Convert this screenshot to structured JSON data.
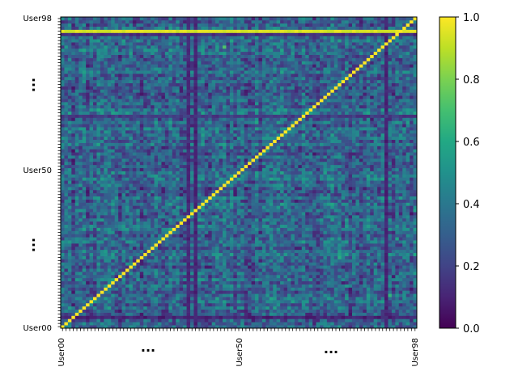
{
  "chart_data": {
    "type": "heatmap",
    "title": "",
    "xlabel": "",
    "ylabel": "",
    "n": 99,
    "row_label_prefix": "User",
    "x_tick_labels": [
      "User00",
      "User50",
      "User98"
    ],
    "y_tick_labels": [
      "User00",
      "User50",
      "User98"
    ],
    "x_ellipsis_labels": [
      "...",
      "..."
    ],
    "y_ellipsis_labels": [
      "...",
      "..."
    ],
    "colorbar": {
      "colormap": "viridis",
      "range": [
        0.0,
        1.0
      ],
      "tick_labels": [
        "0.0",
        "0.2",
        "0.4",
        "0.6",
        "0.8",
        "1.0"
      ]
    },
    "diagonal_value": 1.0,
    "typical_offdiagonal_range": [
      0.15,
      0.5
    ],
    "high_similarity_rows": [
      {
        "index": 94,
        "value": 0.97
      }
    ],
    "low_similarity_rows": [
      {
        "index": 3,
        "value": 0.05
      },
      {
        "index": 67,
        "value": 0.12
      },
      {
        "index": 93,
        "value": 0.08
      }
    ],
    "low_similarity_columns": [
      {
        "index": 35,
        "value": 0.08
      },
      {
        "index": 37,
        "value": 0.06
      },
      {
        "index": 90,
        "value": 0.06
      }
    ],
    "noted_bright_cells": [
      {
        "row": 89,
        "col": 45,
        "value": 0.72
      },
      {
        "row": 10,
        "col": 91,
        "value": 0.65
      },
      {
        "row": 22,
        "col": 77,
        "value": 0.62
      },
      {
        "row": 28,
        "col": 93,
        "value": 0.58
      }
    ]
  }
}
